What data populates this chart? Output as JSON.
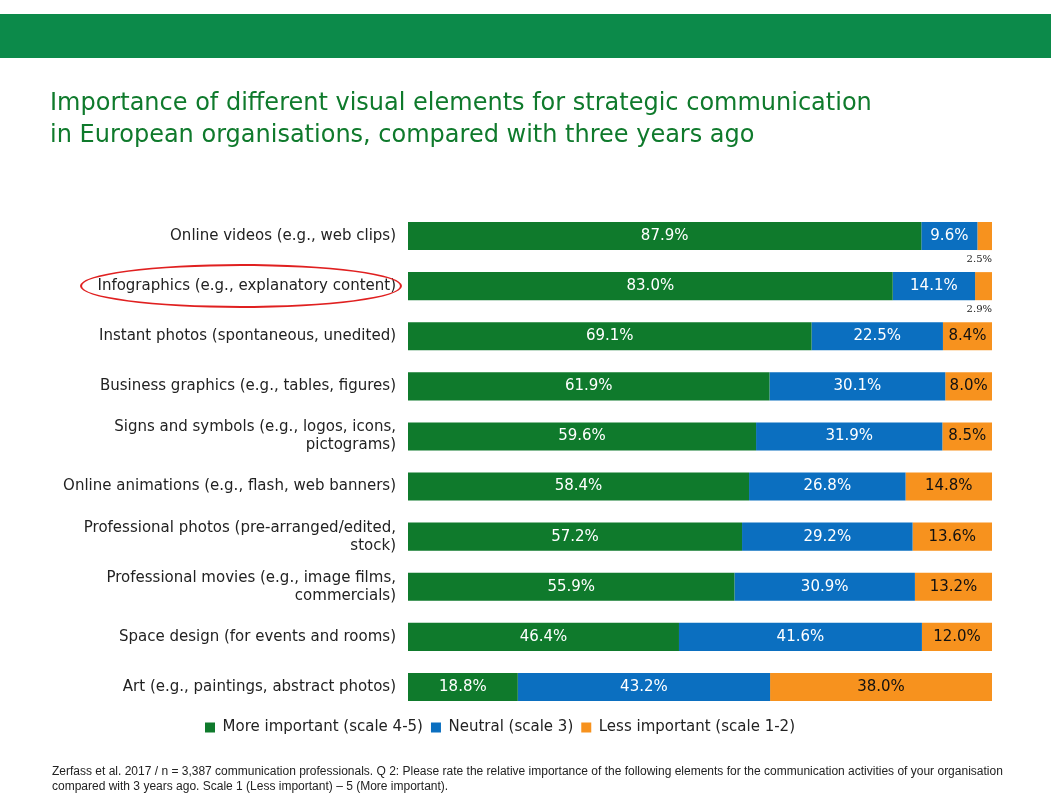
{
  "chart_data": {
    "type": "bar",
    "orientation": "horizontal",
    "stacked": true,
    "title": "Importance of different visual elements for strategic communication in European organisations, compared with three years ago",
    "categories": [
      "Online videos (e.g., web clips)",
      "Infographics (e.g., explanatory content)",
      "Instant photos (spontaneous, unedited)",
      "Business graphics (e.g., tables, figures)",
      "Signs and symbols (e.g., logos, icons, pictograms)",
      "Online animations (e.g., flash, web banners)",
      "Professional photos (pre-arranged/edited, stock)",
      "Professional movies (e.g., image films, commercials)",
      "Space design (for events and rooms)",
      "Art (e.g., paintings, abstract photos)"
    ],
    "series": [
      {
        "name": "More important (scale 4-5)",
        "color": "#0f7a2c",
        "values": [
          87.9,
          83.0,
          69.1,
          61.9,
          59.6,
          58.4,
          57.2,
          55.9,
          46.4,
          18.8
        ],
        "value_labels": [
          "87.9%",
          "83.0%",
          "69.1%",
          "61.9%",
          "59.6%",
          "58.4%",
          "57.2%",
          "55.9%",
          "46.4%",
          "18.8%"
        ]
      },
      {
        "name": "Neutral (scale 3)",
        "color": "#0b6fc0",
        "values": [
          9.6,
          14.1,
          22.5,
          30.1,
          31.9,
          26.8,
          29.2,
          30.9,
          41.6,
          43.2
        ],
        "value_labels": [
          "9.6%",
          "14.1%",
          "22.5%",
          "30.1%",
          "31.9%",
          "26.8%",
          "29.2%",
          "30.9%",
          "41.6%",
          "43.2%"
        ]
      },
      {
        "name": "Less important (scale 1-2)",
        "color": "#f7921e",
        "values": [
          2.5,
          2.9,
          8.4,
          8.0,
          8.5,
          14.8,
          13.6,
          13.2,
          12.0,
          38.0
        ],
        "value_labels": [
          "2.5%",
          "2.9%",
          "8.4%",
          "8.0%",
          "8.5%",
          "14.8%",
          "13.6%",
          "13.2%",
          "12.0%",
          "38.0%"
        ]
      }
    ],
    "xlim": [
      0,
      100
    ],
    "tick_labels": "y",
    "legend": "bottom",
    "annotations": [
      "Zerfass et al. 2017 / n = 3,387 communication professionals. Q 2: Please rate the relative importance of the following elements for the communication activities of your organisation compared with 3 years ago. Scale 1 (Less important) – 5 (More important)."
    ]
  }
}
